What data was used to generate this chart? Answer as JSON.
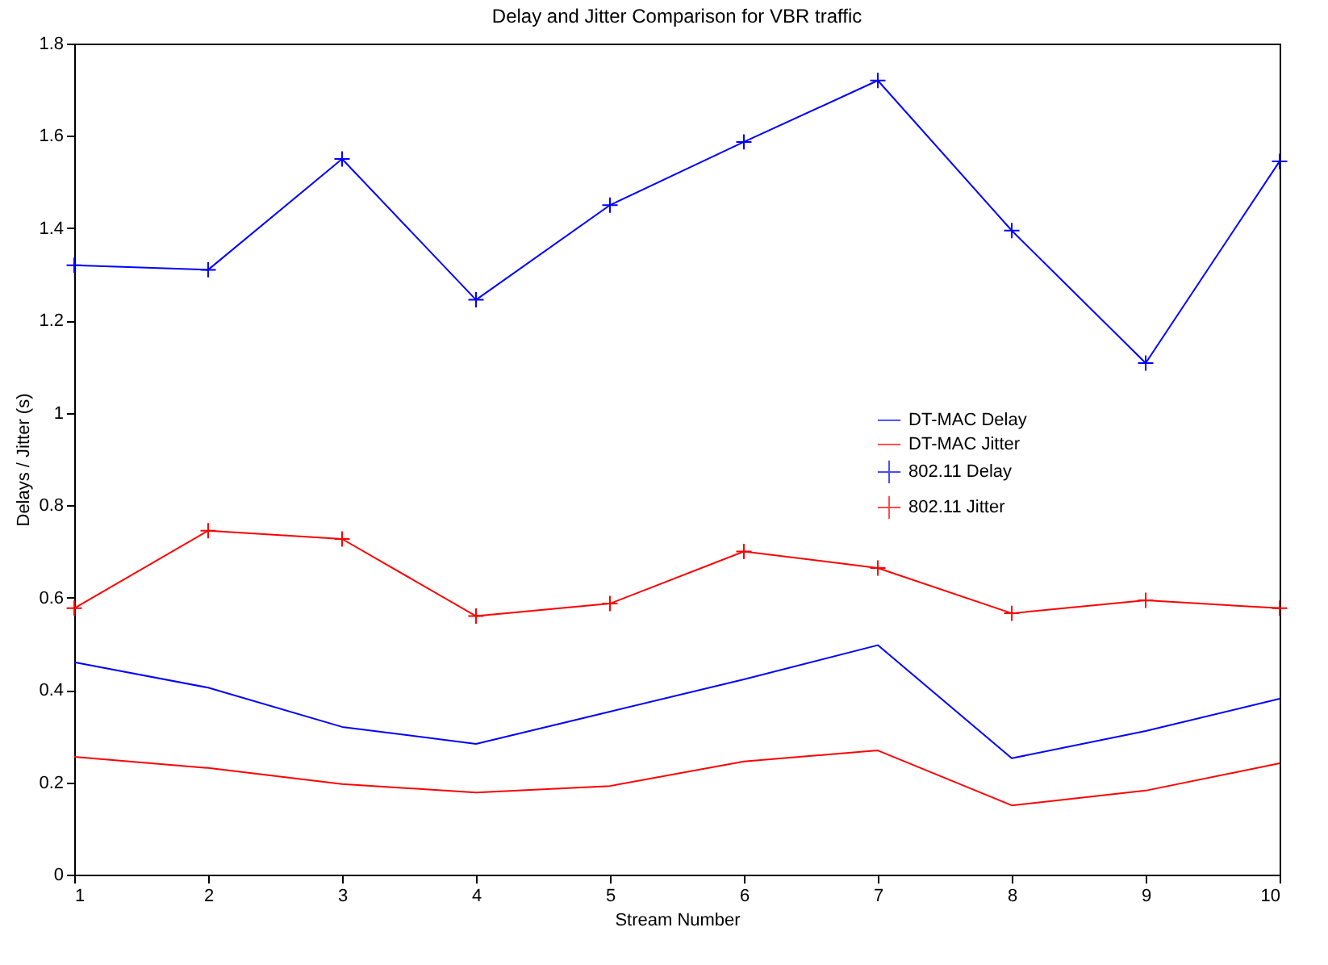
{
  "chart_data": {
    "type": "line",
    "title": "Delay and Jitter Comparison for VBR traffic",
    "xlabel": "Stream Number",
    "ylabel": "Delays / Jitter (s)",
    "x": [
      1,
      2,
      3,
      4,
      5,
      6,
      7,
      8,
      9,
      10
    ],
    "xlim": [
      1,
      10
    ],
    "xticks": [
      1,
      2,
      3,
      4,
      5,
      6,
      7,
      8,
      9,
      10
    ],
    "ylim": [
      0,
      1.8
    ],
    "yticks": [
      0,
      0.2,
      0.4,
      0.6,
      0.8,
      1,
      1.2,
      1.4,
      1.6,
      1.8
    ],
    "grid": false,
    "legend": "right",
    "line_style": "solid",
    "series": [
      {
        "name": "DT-MAC Delay",
        "color": "#0000ff",
        "marker": "none",
        "values": [
          0.46,
          0.405,
          0.32,
          0.283,
          0.353,
          0.423,
          0.497,
          0.252,
          0.311,
          0.381
        ]
      },
      {
        "name": "DT-MAC Jitter",
        "color": "#ff0000",
        "marker": "none",
        "values": [
          0.255,
          0.231,
          0.196,
          0.178,
          0.192,
          0.245,
          0.269,
          0.15,
          0.182,
          0.241
        ]
      },
      {
        "name": "802.11 Delay",
        "color": "#0000ff",
        "marker": "cross",
        "values": [
          1.32,
          1.31,
          1.55,
          1.245,
          1.45,
          1.587,
          1.72,
          1.395,
          1.108,
          1.545
        ]
      },
      {
        "name": "802.11 Jitter",
        "color": "#ff0000",
        "marker": "cross",
        "values": [
          0.577,
          0.745,
          0.727,
          0.56,
          0.587,
          0.7,
          0.664,
          0.566,
          0.594,
          0.577
        ]
      }
    ]
  }
}
